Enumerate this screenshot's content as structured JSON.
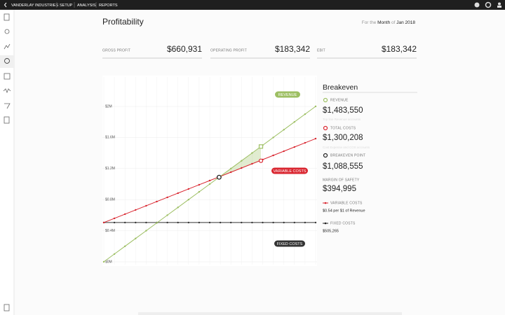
{
  "nav": {
    "company": "VANDERLAY INDUSTRIES",
    "items": [
      "SETUP",
      "ANALYSIS",
      "REPORTS"
    ]
  },
  "header": {
    "title": "Profitability",
    "period_prefix": "For the",
    "period_unit": "Month",
    "period_of": "of",
    "period": "Jan 2018"
  },
  "kpis": [
    {
      "label": "GROSS PROFIT",
      "value": "$660,931"
    },
    {
      "label": "OPERATING PROFIT",
      "value": "$183,342"
    },
    {
      "label": "EBIT",
      "value": "$183,342"
    }
  ],
  "chart_data": {
    "type": "line",
    "x": [
      0,
      100000,
      200000,
      300000,
      400000,
      500000,
      600000,
      700000,
      800000,
      900000,
      1000000,
      1100000,
      1200000,
      1300000,
      1400000,
      1500000,
      1600000,
      1700000,
      1800000,
      1900000,
      2000000
    ],
    "xlim": [
      0,
      2000000
    ],
    "ylim": [
      0,
      2000000
    ],
    "yticks": [
      {
        "value": 2000000,
        "label": "$2M"
      },
      {
        "value": 1600000,
        "label": "$1.6M"
      },
      {
        "value": 1200000,
        "label": "$1.2M"
      },
      {
        "value": 800000,
        "label": "$0.8M"
      },
      {
        "value": 400000,
        "label": "$0.4M"
      },
      {
        "value": 0,
        "label": "$0M"
      }
    ],
    "grid": true,
    "series": [
      {
        "name": "REVENUE",
        "color": "#9dbf63",
        "values": [
          0,
          100000,
          200000,
          300000,
          400000,
          500000,
          600000,
          700000,
          800000,
          900000,
          1000000,
          1100000,
          1200000,
          1300000,
          1400000,
          1500000,
          1600000,
          1700000,
          1800000,
          1900000,
          2000000
        ]
      },
      {
        "name": "VARIABLE COSTS",
        "color": "#d9252f",
        "values": [
          505265,
          559265,
          613265,
          667265,
          721265,
          775265,
          829265,
          883265,
          937265,
          991265,
          1045265,
          1099265,
          1153265,
          1207265,
          1261265,
          1315265,
          1369265,
          1423265,
          1477265,
          1531265,
          1585265
        ]
      },
      {
        "name": "FIXED COSTS",
        "color": "#333333",
        "values": [
          505265,
          505265,
          505265,
          505265,
          505265,
          505265,
          505265,
          505265,
          505265,
          505265,
          505265,
          505265,
          505265,
          505265,
          505265,
          505265,
          505265,
          505265,
          505265,
          505265,
          505265
        ]
      }
    ],
    "highlight": {
      "revenue": 1483550,
      "total_costs": 1300208,
      "breakeven": 1088555
    }
  },
  "panel": {
    "title": "Breakeven",
    "revenue_label": "REVENUE",
    "revenue": "$1,483,550",
    "revenue_note": "Top line Revenue accounts",
    "total_label": "TOTAL COSTS",
    "total": "$1,300,208",
    "total_note": "Cost Expense and COS accounts",
    "breakeven_label": "BREAKEVEN POINT",
    "breakeven": "$1,088,555",
    "margin_label": "MARGIN OF SAFETY",
    "margin": "$394,995",
    "variable_label": "VARIABLE COSTS",
    "variable": "$0.54 per $1 of Revenue",
    "fixed_label": "FIXED COSTS",
    "fixed": "$505,265"
  }
}
